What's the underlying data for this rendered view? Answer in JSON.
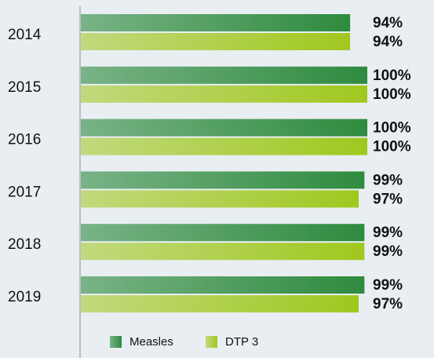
{
  "chart_data": {
    "type": "bar",
    "orientation": "horizontal",
    "categories": [
      "2014",
      "2015",
      "2016",
      "2017",
      "2018",
      "2019"
    ],
    "series": [
      {
        "name": "Measles",
        "color": "#2e8b3e",
        "values": [
          94,
          100,
          100,
          99,
          99,
          99
        ],
        "value_labels": [
          "94%",
          "100%",
          "100%",
          "99%",
          "99%",
          "99%"
        ]
      },
      {
        "name": "DTP 3",
        "color": "#a0c81e",
        "values": [
          94,
          100,
          100,
          97,
          99,
          97
        ],
        "value_labels": [
          "94%",
          "100%",
          "100%",
          "97%",
          "99%",
          "97%"
        ]
      }
    ],
    "xlim": [
      0,
      100
    ],
    "legend": "bottom"
  }
}
